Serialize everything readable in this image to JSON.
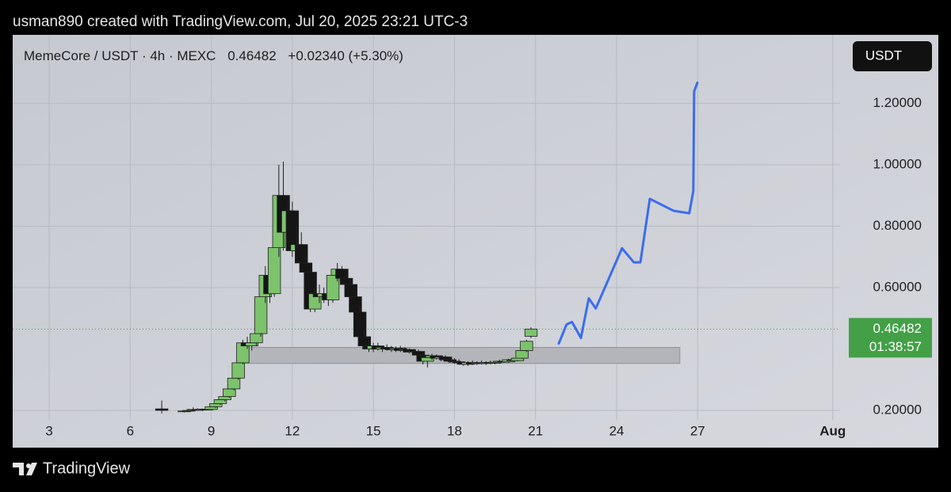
{
  "header": "usman890 created with TradingView.com, Jul 20, 2025 23:21 UTC-3",
  "footer": "TradingView",
  "chart_data": {
    "type": "candlestick",
    "symbol": "MemeCore / USDT · 4h · MEXC",
    "last_price": 0.46482,
    "change": "+0.02340 (+5.30%)",
    "currency": "USDT",
    "countdown": "01:38:57",
    "up_color": "#7cc36c",
    "down_color": "#151515",
    "price_label_color": "#43a047",
    "grid": true,
    "xlim": [
      1.65,
      32.27
    ],
    "ylim": [
      0.169,
      1.423
    ],
    "xticks": [
      3,
      6,
      9,
      12,
      15,
      18,
      21,
      24,
      27,
      {
        "value": 32,
        "label": "Aug"
      }
    ],
    "yticks": [
      {
        "value": 0.2,
        "label": "0.20000"
      },
      {
        "value": 0.6,
        "label": "0.60000"
      },
      {
        "value": 0.8,
        "label": "0.80000"
      },
      {
        "value": 1.0,
        "label": "1.00000"
      },
      {
        "value": 1.2,
        "label": "1.20000"
      }
    ],
    "x": [
      7.167,
      8.0,
      8.167,
      8.333,
      8.5,
      8.667,
      8.833,
      9.0,
      9.167,
      9.333,
      9.5,
      9.667,
      9.833,
      10.0,
      10.167,
      10.333,
      10.5,
      10.667,
      10.833,
      11.0,
      11.167,
      11.333,
      11.5,
      11.667,
      11.833,
      12.0,
      12.167,
      12.333,
      12.5,
      12.667,
      12.833,
      13.0,
      13.167,
      13.333,
      13.5,
      13.667,
      13.833,
      14.0,
      14.167,
      14.333,
      14.5,
      14.667,
      14.833,
      15.0,
      15.167,
      15.333,
      15.5,
      15.667,
      15.833,
      16.0,
      16.167,
      16.333,
      16.5,
      16.667,
      16.833,
      17.0,
      17.167,
      17.333,
      17.5,
      17.667,
      17.833,
      18.0,
      18.167,
      18.333,
      18.5,
      18.667,
      18.833,
      19.0,
      19.167,
      19.333,
      19.5,
      19.667,
      19.833,
      20.0,
      20.167,
      20.333,
      20.5,
      20.667,
      20.833
    ],
    "open": [
      0.205,
      0.196,
      0.198,
      0.2,
      0.203,
      0.201,
      0.204,
      0.203,
      0.212,
      0.222,
      0.235,
      0.245,
      0.27,
      0.305,
      0.355,
      0.42,
      0.41,
      0.42,
      0.45,
      0.57,
      0.64,
      0.58,
      0.73,
      0.9,
      0.78,
      0.85,
      0.72,
      0.74,
      0.68,
      0.65,
      0.53,
      0.58,
      0.57,
      0.58,
      0.56,
      0.64,
      0.66,
      0.63,
      0.61,
      0.57,
      0.52,
      0.44,
      0.41,
      0.4,
      0.41,
      0.4,
      0.405,
      0.4,
      0.398,
      0.402,
      0.395,
      0.398,
      0.39,
      0.392,
      0.38,
      0.36,
      0.372,
      0.378,
      0.37,
      0.374,
      0.365,
      0.36,
      0.358,
      0.355,
      0.35,
      0.356,
      0.352,
      0.355,
      0.353,
      0.356,
      0.354,
      0.357,
      0.36,
      0.358,
      0.365,
      0.362,
      0.37,
      0.395,
      0.44142
    ],
    "high": [
      0.232,
      0.2,
      0.205,
      0.21,
      0.207,
      0.206,
      0.209,
      0.215,
      0.225,
      0.238,
      0.25,
      0.275,
      0.31,
      0.36,
      0.43,
      0.44,
      0.43,
      0.46,
      0.58,
      0.67,
      0.7,
      0.74,
      1.0,
      1.01,
      0.89,
      0.88,
      0.8,
      0.78,
      0.7,
      0.66,
      0.6,
      0.61,
      0.6,
      0.6,
      0.65,
      0.68,
      0.67,
      0.65,
      0.63,
      0.59,
      0.54,
      0.46,
      0.43,
      0.42,
      0.42,
      0.41,
      0.415,
      0.41,
      0.408,
      0.41,
      0.405,
      0.402,
      0.4,
      0.398,
      0.385,
      0.38,
      0.385,
      0.382,
      0.378,
      0.38,
      0.372,
      0.37,
      0.366,
      0.36,
      0.36,
      0.362,
      0.36,
      0.362,
      0.36,
      0.362,
      0.36,
      0.365,
      0.366,
      0.368,
      0.372,
      0.375,
      0.4,
      0.43,
      0.4705
    ],
    "low": [
      0.19,
      0.193,
      0.195,
      0.197,
      0.199,
      0.198,
      0.2,
      0.201,
      0.208,
      0.218,
      0.23,
      0.24,
      0.265,
      0.3,
      0.35,
      0.4,
      0.395,
      0.41,
      0.44,
      0.55,
      0.55,
      0.57,
      0.7,
      0.72,
      0.74,
      0.7,
      0.69,
      0.66,
      0.61,
      0.52,
      0.52,
      0.55,
      0.55,
      0.54,
      0.55,
      0.62,
      0.61,
      0.59,
      0.56,
      0.5,
      0.43,
      0.4,
      0.39,
      0.39,
      0.395,
      0.39,
      0.395,
      0.39,
      0.39,
      0.39,
      0.388,
      0.385,
      0.385,
      0.375,
      0.35,
      0.34,
      0.365,
      0.365,
      0.36,
      0.36,
      0.355,
      0.352,
      0.35,
      0.345,
      0.345,
      0.348,
      0.348,
      0.35,
      0.348,
      0.35,
      0.35,
      0.352,
      0.355,
      0.355,
      0.36,
      0.36,
      0.368,
      0.39,
      0.435
    ],
    "close": [
      0.2,
      0.198,
      0.2,
      0.203,
      0.201,
      0.204,
      0.203,
      0.212,
      0.222,
      0.235,
      0.245,
      0.27,
      0.305,
      0.355,
      0.42,
      0.41,
      0.42,
      0.45,
      0.57,
      0.64,
      0.58,
      0.73,
      0.9,
      0.78,
      0.85,
      0.72,
      0.74,
      0.68,
      0.65,
      0.53,
      0.58,
      0.57,
      0.58,
      0.56,
      0.64,
      0.66,
      0.63,
      0.61,
      0.57,
      0.52,
      0.44,
      0.41,
      0.4,
      0.41,
      0.4,
      0.405,
      0.4,
      0.398,
      0.402,
      0.395,
      0.398,
      0.39,
      0.392,
      0.38,
      0.36,
      0.372,
      0.378,
      0.37,
      0.374,
      0.365,
      0.36,
      0.358,
      0.355,
      0.35,
      0.356,
      0.352,
      0.355,
      0.353,
      0.356,
      0.354,
      0.357,
      0.36,
      0.358,
      0.365,
      0.362,
      0.37,
      0.395,
      0.425,
      0.46482
    ],
    "zone": {
      "x": [
        10.13,
        26.34
      ],
      "y": [
        0.353,
        0.405
      ],
      "color": "#b3b5ba"
    },
    "projection": {
      "color": "#3b6cf0",
      "x": [
        21.86,
        22.15,
        22.35,
        22.68,
        22.97,
        23.23,
        24.2,
        24.64,
        24.88,
        25.23,
        26.11,
        26.69,
        26.84,
        26.87,
        26.99
      ],
      "values": [
        0.418,
        0.48,
        0.488,
        0.436,
        0.565,
        0.532,
        0.728,
        0.682,
        0.682,
        0.889,
        0.85,
        0.842,
        0.915,
        1.239,
        1.267
      ]
    }
  }
}
